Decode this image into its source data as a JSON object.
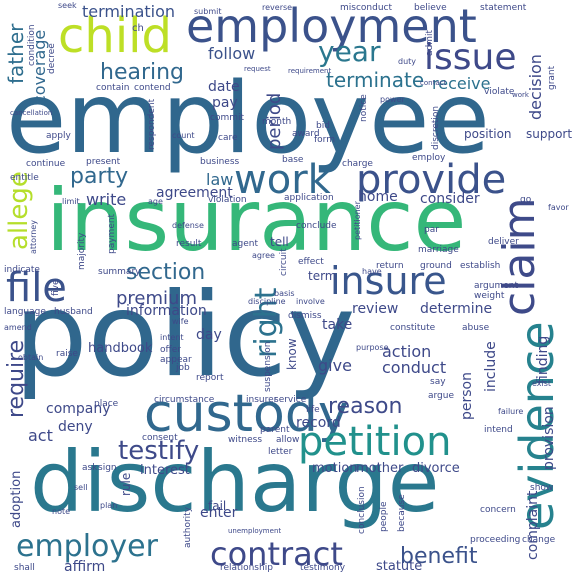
{
  "cloud": {
    "words": [
      {
        "text": "employee",
        "color": "#30678d"
      },
      {
        "text": "policy",
        "color": "#30678d"
      },
      {
        "text": "insurance",
        "color": "#35b779"
      },
      {
        "text": "discharge",
        "color": "#2a788e"
      },
      {
        "text": "employment",
        "color": "#3b528b"
      },
      {
        "text": "child",
        "color": "#bddf26"
      },
      {
        "text": "custody",
        "color": "#31688e"
      },
      {
        "text": "petition",
        "color": "#21918c"
      },
      {
        "text": "evidence",
        "color": "#26828e"
      },
      {
        "text": "claim",
        "color": "#3e4a89"
      },
      {
        "text": "insure",
        "color": "#39568c"
      },
      {
        "text": "provide",
        "color": "#3b528b"
      },
      {
        "text": "issue",
        "color": "#3e4989"
      },
      {
        "text": "work",
        "color": "#31688e"
      },
      {
        "text": "file",
        "color": "#3b528b"
      },
      {
        "text": "contract",
        "color": "#3e4989"
      },
      {
        "text": "employer",
        "color": "#2c728e"
      },
      {
        "text": "year",
        "color": "#2a778e"
      },
      {
        "text": "hearing",
        "color": "#31688e"
      },
      {
        "text": "section",
        "color": "#31688e"
      },
      {
        "text": "testify",
        "color": "#3e4a89"
      },
      {
        "text": "allege",
        "color": "#b5de2b"
      },
      {
        "text": "right",
        "color": "#2c728e"
      },
      {
        "text": "reason",
        "color": "#3e4a89"
      },
      {
        "text": "party",
        "color": "#31688e"
      },
      {
        "text": "terminate",
        "color": "#2c728e"
      },
      {
        "text": "benefit",
        "color": "#3b528b"
      },
      {
        "text": "require",
        "color": "#3e4989"
      },
      {
        "text": "premium",
        "color": "#3e4989"
      },
      {
        "text": "period",
        "color": "#3e4989"
      },
      {
        "text": "father",
        "color": "#2e6e8e"
      },
      {
        "text": "coverage",
        "color": "#31688e"
      },
      {
        "text": "termination",
        "color": "#3b528b"
      },
      {
        "text": "receive",
        "color": "#2c728e"
      },
      {
        "text": "decision",
        "color": "#3e4989"
      },
      {
        "text": "follow",
        "color": "#3b528b"
      },
      {
        "text": "date",
        "color": "#3e4989"
      },
      {
        "text": "pay",
        "color": "#3e4989"
      },
      {
        "text": "law",
        "color": "#31688e"
      },
      {
        "text": "agreement",
        "color": "#3e4989"
      },
      {
        "text": "write",
        "color": "#3e4989"
      },
      {
        "text": "home",
        "color": "#3e4989"
      },
      {
        "text": "consider",
        "color": "#3e4989"
      },
      {
        "text": "review",
        "color": "#3e4989"
      },
      {
        "text": "determine",
        "color": "#3e4989"
      },
      {
        "text": "information",
        "color": "#3e4989"
      },
      {
        "text": "action",
        "color": "#3e4989"
      },
      {
        "text": "conduct",
        "color": "#3e4989"
      },
      {
        "text": "give",
        "color": "#3e4989"
      },
      {
        "text": "take",
        "color": "#3e4989"
      },
      {
        "text": "record",
        "color": "#3e4989"
      },
      {
        "text": "company",
        "color": "#3e4989"
      },
      {
        "text": "deny",
        "color": "#3e4989"
      },
      {
        "text": "act",
        "color": "#3e4989"
      },
      {
        "text": "motion",
        "color": "#3e4989"
      },
      {
        "text": "mother",
        "color": "#3e4989"
      },
      {
        "text": "divorce",
        "color": "#3e4989"
      },
      {
        "text": "interest",
        "color": "#3e4989"
      },
      {
        "text": "adoption",
        "color": "#3e4989"
      },
      {
        "text": "affirm",
        "color": "#3e4989"
      },
      {
        "text": "enter",
        "color": "#3e4989"
      },
      {
        "text": "statute",
        "color": "#3e4989"
      },
      {
        "text": "person",
        "color": "#3e4989"
      },
      {
        "text": "include",
        "color": "#3e4989"
      },
      {
        "text": "finding",
        "color": "#3e4989"
      },
      {
        "text": "provision",
        "color": "#3e4989"
      },
      {
        "text": "complaint",
        "color": "#3e4989"
      },
      {
        "text": "day",
        "color": "#3e4989"
      },
      {
        "text": "handbook",
        "color": "#3e4989"
      },
      {
        "text": "term",
        "color": "#3e4989"
      },
      {
        "text": "tell",
        "color": "#3e4989"
      },
      {
        "text": "know",
        "color": "#3e4989"
      },
      {
        "text": "rule",
        "color": "#3e4989"
      },
      {
        "text": "fail",
        "color": "#3e4989"
      },
      {
        "text": "position",
        "color": "#3e4989"
      },
      {
        "text": "support",
        "color": "#3e4989"
      },
      {
        "text": "ch",
        "color": "#3e4989"
      },
      {
        "text": "submit",
        "color": "#3e4989"
      },
      {
        "text": "misconduct",
        "color": "#3e4989"
      },
      {
        "text": "believe",
        "color": "#3e4989"
      },
      {
        "text": "statement",
        "color": "#3e4989"
      },
      {
        "text": "reverse",
        "color": "#3e4989"
      },
      {
        "text": "seek",
        "color": "#3e4989"
      },
      {
        "text": "duty",
        "color": "#3e4989"
      },
      {
        "text": "request",
        "color": "#3e4989"
      },
      {
        "text": "requirement",
        "color": "#3e4989"
      },
      {
        "text": "contain",
        "color": "#3e4989"
      },
      {
        "text": "contend",
        "color": "#3e4989"
      },
      {
        "text": "commit",
        "color": "#3e4989"
      },
      {
        "text": "bid",
        "color": "#3e4989"
      },
      {
        "text": "form",
        "color": "#3e4989"
      },
      {
        "text": "care",
        "color": "#3e4989"
      },
      {
        "text": "base",
        "color": "#3e4989"
      },
      {
        "text": "charge",
        "color": "#3e4989"
      },
      {
        "text": "employ",
        "color": "#3e4989"
      },
      {
        "text": "business",
        "color": "#3e4989"
      },
      {
        "text": "present",
        "color": "#3e4989"
      },
      {
        "text": "apply",
        "color": "#3e4989"
      },
      {
        "text": "application",
        "color": "#3e4989"
      },
      {
        "text": "conclude",
        "color": "#3e4989"
      },
      {
        "text": "par",
        "color": "#3e4989"
      },
      {
        "text": "establish",
        "color": "#3e4989"
      },
      {
        "text": "return",
        "color": "#3e4989"
      },
      {
        "text": "ground",
        "color": "#3e4989"
      },
      {
        "text": "marriage",
        "color": "#3e4989"
      },
      {
        "text": "argument",
        "color": "#3e4989"
      },
      {
        "text": "weight",
        "color": "#3e4989"
      },
      {
        "text": "dismiss",
        "color": "#3e4989"
      },
      {
        "text": "constitute",
        "color": "#3e4989"
      },
      {
        "text": "purpose",
        "color": "#3e4989"
      },
      {
        "text": "abuse",
        "color": "#3e4989"
      },
      {
        "text": "say",
        "color": "#3e4989"
      },
      {
        "text": "argue",
        "color": "#3e4989"
      },
      {
        "text": "place",
        "color": "#3e4989"
      },
      {
        "text": "offer",
        "color": "#3e4989"
      },
      {
        "text": "intent",
        "color": "#3e4989"
      },
      {
        "text": "appear",
        "color": "#3e4989"
      },
      {
        "text": "raise",
        "color": "#3e4989"
      },
      {
        "text": "report",
        "color": "#3e4989"
      },
      {
        "text": "job",
        "color": "#3e4989"
      },
      {
        "text": "insurer",
        "color": "#3e4989"
      },
      {
        "text": "service",
        "color": "#3e4989"
      },
      {
        "text": "consent",
        "color": "#3e4989"
      },
      {
        "text": "witness",
        "color": "#3e4989"
      },
      {
        "text": "ask",
        "color": "#3e4989"
      },
      {
        "text": "concern",
        "color": "#3e4989"
      },
      {
        "text": "proceeding",
        "color": "#3e4989"
      },
      {
        "text": "change",
        "color": "#3e4989"
      },
      {
        "text": "shall",
        "color": "#3e4989"
      },
      {
        "text": "relationship",
        "color": "#3e4989"
      },
      {
        "text": "testimony",
        "color": "#3e4989"
      },
      {
        "text": "conclusion",
        "color": "#3e4989"
      },
      {
        "text": "because",
        "color": "#3e4989"
      },
      {
        "text": "people",
        "color": "#3e4989"
      },
      {
        "text": "show",
        "color": "#3e4989"
      },
      {
        "text": "letter",
        "color": "#3e4989"
      },
      {
        "text": "allow",
        "color": "#3e4989"
      },
      {
        "text": "parent",
        "color": "#3e4989"
      },
      {
        "text": "authority",
        "color": "#3e4989"
      },
      {
        "text": "life",
        "color": "#3e4989"
      },
      {
        "text": "intend",
        "color": "#3e4989"
      },
      {
        "text": "failure",
        "color": "#3e4989"
      },
      {
        "text": "exist",
        "color": "#3e4989"
      },
      {
        "text": "majority",
        "color": "#3e4989"
      },
      {
        "text": "payment",
        "color": "#3e4989"
      },
      {
        "text": "result",
        "color": "#3e4989"
      },
      {
        "text": "agent",
        "color": "#3e4989"
      },
      {
        "text": "deliver",
        "color": "#3e4989"
      },
      {
        "text": "summary",
        "color": "#3e4989"
      },
      {
        "text": "effect",
        "color": "#3e4989"
      },
      {
        "text": "circuit",
        "color": "#3e4989"
      },
      {
        "text": "violation",
        "color": "#3e4989"
      },
      {
        "text": "award",
        "color": "#3e4989"
      },
      {
        "text": "entitle",
        "color": "#3e4989"
      },
      {
        "text": "continue",
        "color": "#3e4989"
      },
      {
        "text": "month",
        "color": "#3e4989"
      },
      {
        "text": "respondent",
        "color": "#3e4989"
      },
      {
        "text": "language",
        "color": "#3e4989"
      },
      {
        "text": "husband",
        "color": "#3e4989"
      },
      {
        "text": "five",
        "color": "#3e4989"
      },
      {
        "text": "note",
        "color": "#3e4989"
      },
      {
        "text": "sign",
        "color": "#3e4989"
      },
      {
        "text": "plan",
        "color": "#3e4989"
      },
      {
        "text": "condition",
        "color": "#3e4989"
      },
      {
        "text": "decree",
        "color": "#3e4989"
      },
      {
        "text": "admit",
        "color": "#3e4989"
      },
      {
        "text": "grant",
        "color": "#3e4989"
      },
      {
        "text": "violate",
        "color": "#3e4989"
      },
      {
        "text": "power",
        "color": "#3e4989"
      },
      {
        "text": "cancellation",
        "color": "#3e4989"
      },
      {
        "text": "discretion",
        "color": "#3e4989"
      },
      {
        "text": "notice",
        "color": "#3e4989"
      },
      {
        "text": "count",
        "color": "#3e4989"
      },
      {
        "text": "basis",
        "color": "#3e4989"
      },
      {
        "text": "discipline",
        "color": "#3e4989"
      },
      {
        "text": "involve",
        "color": "#3e4989"
      },
      {
        "text": "circumstance",
        "color": "#3e4989"
      },
      {
        "text": "suspension",
        "color": "#3e4989"
      },
      {
        "text": "unemployment",
        "color": "#3e4989"
      },
      {
        "text": "attorney",
        "color": "#3e4989"
      },
      {
        "text": "defense",
        "color": "#3e4989"
      },
      {
        "text": "obtain",
        "color": "#3e4989"
      },
      {
        "text": "favor",
        "color": "#3e4989"
      },
      {
        "text": "go",
        "color": "#3e4989"
      },
      {
        "text": "amend",
        "color": "#3e4989"
      },
      {
        "text": "limit",
        "color": "#3e4989"
      },
      {
        "text": "indicate",
        "color": "#3e4989"
      },
      {
        "text": "contact",
        "color": "#3e4989"
      },
      {
        "text": "work",
        "color": "#3e4989"
      },
      {
        "text": "petitioner",
        "color": "#3e4989"
      },
      {
        "text": "wife",
        "color": "#3e4989"
      },
      {
        "text": "agree",
        "color": "#3e4989"
      },
      {
        "text": "have",
        "color": "#3e4989"
      },
      {
        "text": "age",
        "color": "#3e4989"
      },
      {
        "text": "sell",
        "color": "#3e4989"
      }
    ]
  }
}
